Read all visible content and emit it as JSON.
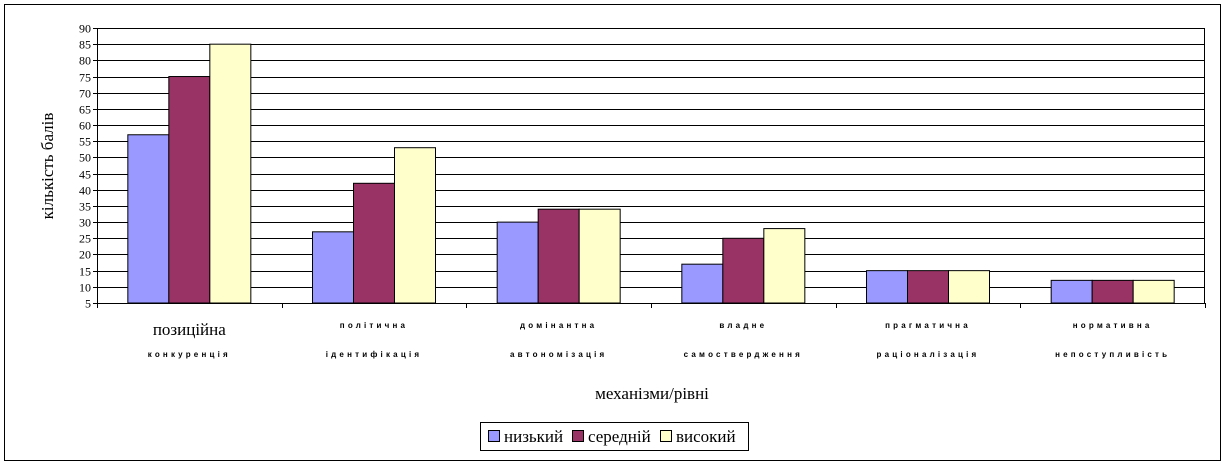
{
  "chart_data": {
    "type": "bar",
    "title": "",
    "xlabel": "механізми/рівні",
    "ylabel": "кількість балів",
    "ylim": [
      5,
      90
    ],
    "yticks": [
      5,
      10,
      15,
      20,
      25,
      30,
      35,
      40,
      45,
      50,
      55,
      60,
      65,
      70,
      75,
      80,
      85,
      90
    ],
    "grid": true,
    "legend_position": "bottom",
    "categories": [
      [
        "позиційна",
        "конкуренція"
      ],
      [
        "політична",
        "ідентифікація"
      ],
      [
        "домінантна",
        "автономізація"
      ],
      [
        "владне",
        "самоствердження"
      ],
      [
        "прагматична",
        "раціоналізація"
      ],
      [
        "нормативна",
        "непоступливість"
      ]
    ],
    "series": [
      {
        "name": "низький",
        "color": "#9999ff",
        "values": [
          57,
          27,
          30,
          17,
          15,
          12
        ]
      },
      {
        "name": "середній",
        "color": "#993366",
        "values": [
          75,
          42,
          34,
          25,
          15,
          12
        ]
      },
      {
        "name": "високий",
        "color": "#ffffcc",
        "values": [
          85,
          53,
          34,
          28,
          15,
          12
        ]
      }
    ]
  }
}
